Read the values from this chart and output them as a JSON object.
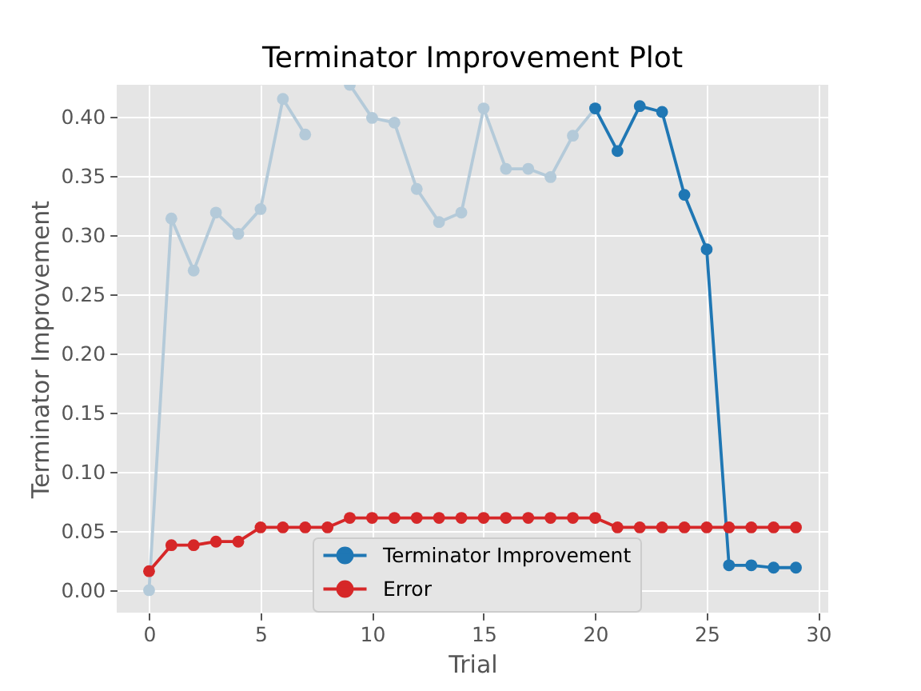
{
  "chart_data": {
    "type": "line",
    "title": "Terminator Improvement Plot",
    "xlabel": "Trial",
    "ylabel": "Terminator Improvement",
    "x": [
      0,
      1,
      2,
      3,
      4,
      5,
      6,
      7,
      8,
      9,
      10,
      11,
      12,
      13,
      14,
      15,
      16,
      17,
      18,
      19,
      20,
      21,
      22,
      23,
      24,
      25,
      26,
      27,
      28,
      29
    ],
    "series": [
      {
        "color": "#b4cad9",
        "x": [
          0,
          1,
          2,
          3,
          4,
          5,
          6,
          7,
          8,
          9,
          10,
          11,
          12,
          13,
          14,
          15,
          16,
          17,
          18,
          19,
          20
        ],
        "values": [
          0,
          0.314,
          0.27,
          0.319,
          0.301,
          0.322,
          0.415,
          0.385,
          null,
          0.427,
          0.399,
          0.395,
          0.339,
          0.311,
          0.319,
          0.407,
          0.356,
          0.356,
          0.349,
          0.384,
          0.407
        ]
      },
      {
        "name": "Terminator Improvement",
        "color": "#1f77b4",
        "x": [
          20,
          21,
          22,
          23,
          24,
          25,
          26,
          27,
          28,
          29
        ],
        "values": [
          0.407,
          0.371,
          0.409,
          0.404,
          0.334,
          0.288,
          0.021,
          0.021,
          0.019,
          0.019
        ]
      },
      {
        "name": "Error",
        "color": "#d62728",
        "values": [
          0.016,
          0.038,
          0.038,
          0.041,
          0.041,
          0.053,
          0.053,
          0.053,
          0.053,
          0.061,
          0.061,
          0.061,
          0.061,
          0.061,
          0.061,
          0.061,
          0.061,
          0.061,
          0.061,
          0.061,
          0.061,
          0.053,
          0.053,
          0.053,
          0.053,
          0.053,
          0.053,
          0.053,
          0.053,
          0.053
        ]
      }
    ],
    "xlim": [
      -1.45,
      30.45
    ],
    "ylim": [
      -0.019,
      0.427
    ],
    "xticks": [
      0,
      5,
      10,
      15,
      20,
      25,
      30
    ],
    "yticks": [
      {
        "value": 0,
        "label": "0.00"
      },
      {
        "value": 0.05,
        "label": "0.05"
      },
      {
        "value": 0.1,
        "label": "0.10"
      },
      {
        "value": 0.15,
        "label": "0.15"
      },
      {
        "value": 0.2,
        "label": "0.20"
      },
      {
        "value": 0.25,
        "label": "0.25"
      },
      {
        "value": 0.3,
        "label": "0.30"
      },
      {
        "value": 0.35,
        "label": "0.35"
      },
      {
        "value": 0.4,
        "label": "0.40"
      }
    ],
    "grid": true,
    "legend": "bottom",
    "marker": "circle",
    "line_style": "solid"
  }
}
